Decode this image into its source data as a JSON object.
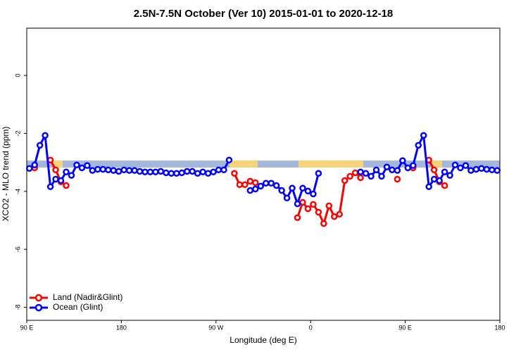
{
  "chart_data": {
    "type": "line",
    "title": "2.5N-7.5N October (Ver 10)   2015-01-01 to 2020-12-18",
    "x_label": "Longitude (deg E)",
    "y_label": "XCO2 - MLO trend (ppm)",
    "x": [
      92.5,
      97.5,
      102.5,
      107.5,
      112.5,
      117.5,
      122.5,
      127.5,
      132.5,
      137.5,
      142.5,
      147.5,
      152.5,
      157.5,
      162.5,
      167.5,
      172.5,
      177.5,
      182.5,
      187.5,
      192.5,
      197.5,
      202.5,
      207.5,
      212.5,
      217.5,
      222.5,
      227.5,
      232.5,
      237.5,
      242.5,
      247.5,
      252.5,
      257.5,
      262.5,
      267.5,
      272.5,
      277.5,
      282.5,
      287.5,
      292.5,
      297.5,
      302.5,
      307.5,
      312.5,
      317.5,
      322.5,
      327.5,
      332.5,
      337.5,
      342.5,
      347.5,
      352.5,
      357.5,
      362.5,
      367.5,
      372.5,
      377.5,
      382.5,
      387.5,
      392.5,
      397.5,
      402.5,
      407.5,
      412.5,
      417.5,
      422.5,
      427.5,
      432.5,
      437.5,
      442.5,
      447.5,
      452.5,
      457.5,
      462.5,
      467.5,
      472.5,
      477.5,
      482.5,
      487.5,
      492.5,
      497.5,
      502.5,
      507.5,
      512.5,
      517.5,
      522.5,
      527.5,
      532.5,
      537.5
    ],
    "series": [
      {
        "name": "Land (Nadir&Glint)",
        "color": "#ff0000",
        "values": [
          null,
          -3.19,
          null,
          null,
          -2.92,
          -3.26,
          -3.67,
          -3.8,
          null,
          null,
          null,
          null,
          null,
          null,
          null,
          null,
          null,
          null,
          null,
          null,
          null,
          null,
          null,
          null,
          null,
          null,
          null,
          null,
          null,
          null,
          null,
          null,
          null,
          null,
          null,
          null,
          null,
          null,
          null,
          -3.38,
          -3.77,
          -3.77,
          -3.65,
          -3.7,
          null,
          null,
          null,
          null,
          null,
          null,
          null,
          -4.91,
          -4.38,
          -4.6,
          -4.45,
          -4.72,
          -5.11,
          -4.5,
          -4.87,
          -4.79,
          -3.63,
          -3.48,
          -3.36,
          -3.53,
          null,
          null,
          null,
          null,
          null,
          null,
          -3.58,
          null,
          null,
          -3.19,
          null,
          null,
          -2.92,
          -3.26,
          -3.67,
          -3.8,
          null,
          null,
          null,
          null,
          null,
          null,
          null,
          null,
          null,
          null
        ]
      },
      {
        "name": "Ocean (Glint)",
        "color": "#0000ff",
        "values": [
          -3.21,
          -3.09,
          -2.41,
          -2.07,
          -3.84,
          -3.58,
          -3.63,
          -3.33,
          -3.45,
          -3.09,
          -3.19,
          -3.11,
          -3.28,
          -3.24,
          -3.24,
          -3.26,
          -3.28,
          -3.31,
          -3.26,
          -3.28,
          -3.28,
          -3.31,
          -3.33,
          -3.33,
          -3.33,
          -3.31,
          -3.36,
          -3.38,
          -3.38,
          -3.36,
          -3.31,
          -3.31,
          -3.38,
          -3.33,
          -3.38,
          -3.33,
          -3.26,
          -3.26,
          -2.92,
          null,
          null,
          null,
          -3.97,
          -3.92,
          -3.82,
          -3.72,
          -3.72,
          -3.8,
          -3.97,
          -4.23,
          -3.89,
          -4.43,
          -3.89,
          -3.99,
          -4.09,
          -3.38,
          null,
          null,
          null,
          null,
          null,
          null,
          null,
          -3.33,
          -3.38,
          -3.48,
          -3.26,
          -3.48,
          -3.16,
          -3.26,
          -3.28,
          -2.94,
          -3.19,
          -3.11,
          -2.41,
          -2.07,
          -3.84,
          -3.58,
          -3.63,
          -3.33,
          -3.45,
          -3.09,
          -3.19,
          -3.11,
          -3.28,
          -3.24,
          -3.21,
          -3.24,
          -3.26,
          -3.28
        ]
      }
    ],
    "xlim": [
      90,
      540
    ],
    "xticks": [
      {
        "value": 90,
        "label": "90 E"
      },
      180,
      {
        "value": 270,
        "label": "90 W"
      },
      {
        "value": 360,
        "label": "0"
      },
      {
        "value": 450,
        "label": "90 E"
      },
      {
        "value": 540,
        "label": "180"
      }
    ],
    "ylim": [
      -8.45,
      1.63
    ],
    "yticks": [
      0,
      -2,
      -4,
      -6,
      -8
    ],
    "legend": "bottom-left"
  }
}
